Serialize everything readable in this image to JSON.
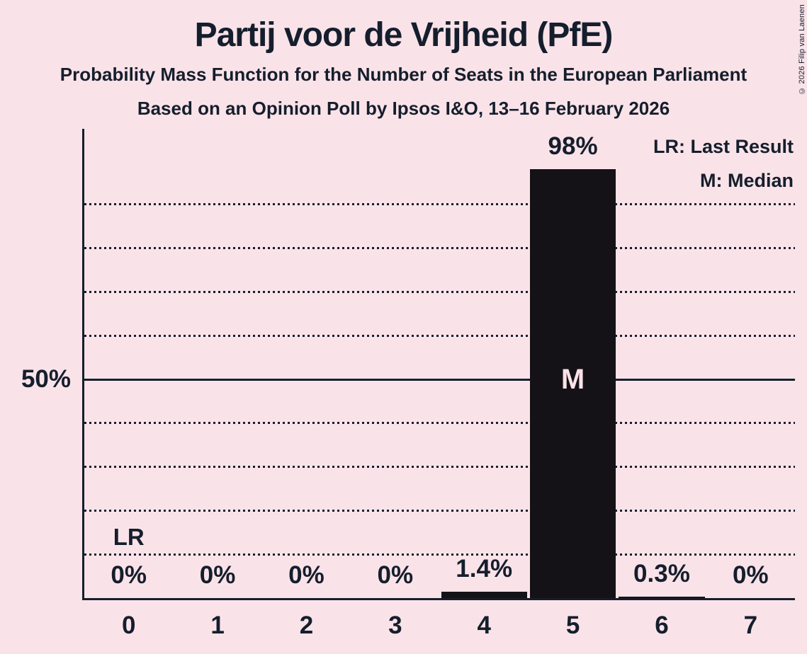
{
  "title": "Partij voor de Vrijheid (PfE)",
  "subtitle": "Probability Mass Function for the Number of Seats in the European Parliament",
  "poll_info": "Based on an Opinion Poll by Ipsos I&O, 13–16 February 2026",
  "copyright": "© 2026 Filip van Laenen",
  "legend": {
    "lr": "LR: Last Result",
    "m": "M: Median"
  },
  "colors": {
    "background": "#fae3e8",
    "ink": "#151e2d",
    "bar": "#141217",
    "bar_text": "#fae3e8"
  },
  "chart_data": {
    "type": "bar",
    "title": "Partij voor de Vrijheid (PfE)",
    "categories": [
      "0",
      "1",
      "2",
      "3",
      "4",
      "5",
      "6",
      "7"
    ],
    "values": [
      0,
      0,
      0,
      0,
      1.4,
      98,
      0.3,
      0
    ],
    "bar_labels": [
      "0%",
      "0%",
      "0%",
      "0%",
      "1.4%",
      "98%",
      "0.3%",
      "0%"
    ],
    "ylim": [
      0,
      100
    ],
    "y_ticks": [
      {
        "value": 50,
        "label": "50%"
      }
    ],
    "gridlines": {
      "dotted": [
        10,
        20,
        30,
        40,
        60,
        70,
        80,
        90
      ],
      "solid": [
        50
      ]
    },
    "median": {
      "marker": "M",
      "seat_index": 5
    },
    "last_result": {
      "marker": "LR",
      "seat_index": 0
    },
    "legend_position": "top-right",
    "grid": true
  }
}
